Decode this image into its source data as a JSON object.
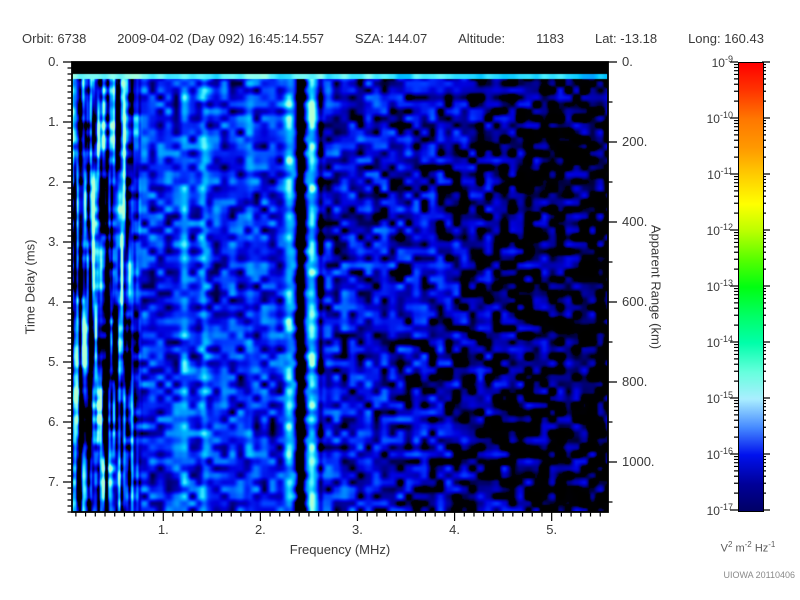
{
  "header": {
    "segments": [
      "Orbit: 6738",
      "2009-04-02 (Day 092) 16:45:14.557",
      "SZA: 144.07",
      "Altitude:",
      "1183",
      "Lat: -13.18",
      "Long: 160.43"
    ]
  },
  "footer": {
    "credit": "UIOWA 20110406"
  },
  "chart_data": {
    "type": "heatmap",
    "title": "",
    "xlabel": "Frequency (MHz)",
    "ylabel_left": "Time Delay (ms)",
    "ylabel_right": "Apparent Range (km)",
    "x_range_mhz": [
      0.06,
      5.58
    ],
    "y_range_ms": [
      0.0,
      7.5
    ],
    "grid": false,
    "x_ticks": {
      "values": [
        1,
        2,
        3,
        4,
        5
      ],
      "labels": [
        "1.",
        "2.",
        "3.",
        "4.",
        "5."
      ],
      "minor_step": 0.1
    },
    "y_ticks": {
      "values": [
        0,
        1,
        2,
        3,
        4,
        5,
        6,
        7
      ],
      "labels": [
        "0.",
        "1.",
        "2.",
        "3.",
        "4.",
        "5.",
        "6.",
        "7."
      ],
      "minor_step": 0.1
    },
    "right_ticks": {
      "values": [
        0,
        200,
        400,
        600,
        800,
        1000
      ],
      "labels": [
        "0.",
        "200.",
        "400.",
        "600.",
        "800.",
        "1000."
      ],
      "minor_step": 100,
      "km_per_ms": 150
    },
    "colorbar": {
      "scale": "log",
      "tick_mantissa": "10",
      "tick_exponents": [
        "-9",
        "-10",
        "-11",
        "-12",
        "-13",
        "-14",
        "-15",
        "-16",
        "-17"
      ],
      "units_segments": [
        {
          "t": "V"
        },
        {
          "s": "2"
        },
        {
          "t": " m"
        },
        {
          "s": "-2"
        },
        {
          "t": " Hz"
        },
        {
          "s": "-1"
        }
      ],
      "gradient": [
        {
          "p": 0.0,
          "c": "#ff0000"
        },
        {
          "p": 0.06,
          "c": "#ff3300"
        },
        {
          "p": 0.125,
          "c": "#ff7700"
        },
        {
          "p": 0.19,
          "c": "#ff9900"
        },
        {
          "p": 0.25,
          "c": "#ffcc00"
        },
        {
          "p": 0.315,
          "c": "#ffff00"
        },
        {
          "p": 0.375,
          "c": "#bbff00"
        },
        {
          "p": 0.44,
          "c": "#55ff00"
        },
        {
          "p": 0.5,
          "c": "#00ff11"
        },
        {
          "p": 0.565,
          "c": "#00ff66"
        },
        {
          "p": 0.625,
          "c": "#00ffaa"
        },
        {
          "p": 0.69,
          "c": "#66ffdd"
        },
        {
          "p": 0.75,
          "c": "#aaeeff"
        },
        {
          "p": 0.815,
          "c": "#4488ff"
        },
        {
          "p": 0.875,
          "c": "#0011ee"
        },
        {
          "p": 0.94,
          "c": "#000099"
        },
        {
          "p": 1.0,
          "c": "#000066"
        }
      ]
    },
    "plot_colormap": [
      {
        "v": 0.0,
        "c": "#000000"
      },
      {
        "v": 0.12,
        "c": "#000011"
      },
      {
        "v": 0.22,
        "c": "#000088"
      },
      {
        "v": 0.34,
        "c": "#0000dd"
      },
      {
        "v": 0.47,
        "c": "#0033ff"
      },
      {
        "v": 0.62,
        "c": "#0088ff"
      },
      {
        "v": 0.74,
        "c": "#00c4ff"
      },
      {
        "v": 0.85,
        "c": "#4cefff"
      },
      {
        "v": 0.93,
        "c": "#8dffef"
      },
      {
        "v": 1.0,
        "c": "#b4ffd2"
      }
    ],
    "spectrogram": {
      "seed": 7,
      "top_black_band_ms": 0.2,
      "surface_echo_band_ms": [
        0.2,
        0.29
      ],
      "noise_envelope": [
        [
          0.06,
          0.4
        ],
        [
          0.3,
          0.42
        ],
        [
          0.8,
          0.43
        ],
        [
          1.6,
          0.41
        ],
        [
          2.6,
          0.38
        ],
        [
          3.2,
          0.34
        ],
        [
          3.8,
          0.28
        ],
        [
          4.3,
          0.21
        ],
        [
          4.8,
          0.15
        ],
        [
          5.2,
          0.12
        ],
        [
          5.58,
          0.1
        ]
      ],
      "blob_noise_amp": 0.55,
      "stripe_noise_amp": 1.4,
      "stripe_region_mhz": [
        0.62,
        0.8
      ],
      "bright_lines_mhz": [
        {
          "f": 0.19,
          "w": 0.018,
          "a": 0.3
        },
        {
          "f": 0.305,
          "w": 0.018,
          "a": 0.35
        },
        {
          "f": 0.46,
          "w": 0.015,
          "a": 0.22
        },
        {
          "f": 0.58,
          "w": 0.015,
          "a": 0.18
        },
        {
          "f": 1.22,
          "w": 0.035,
          "a": 0.22
        },
        {
          "f": 1.42,
          "w": 0.03,
          "a": 0.22
        },
        {
          "f": 1.9,
          "w": 0.03,
          "a": 0.1
        },
        {
          "f": 2.3,
          "w": 0.04,
          "a": 0.4
        },
        {
          "f": 2.53,
          "w": 0.035,
          "a": 0.46
        }
      ],
      "dark_lines_mhz": [
        {
          "f": 0.145,
          "w": 0.015,
          "a": 0.45
        },
        {
          "f": 0.245,
          "w": 0.012,
          "a": 0.38
        },
        {
          "f": 0.425,
          "w": 0.015,
          "a": 0.42
        },
        {
          "f": 0.52,
          "w": 0.012,
          "a": 0.3
        },
        {
          "f": 2.415,
          "w": 0.03,
          "a": 0.65
        },
        {
          "f": 2.62,
          "w": 0.02,
          "a": 0.25
        }
      ]
    }
  }
}
